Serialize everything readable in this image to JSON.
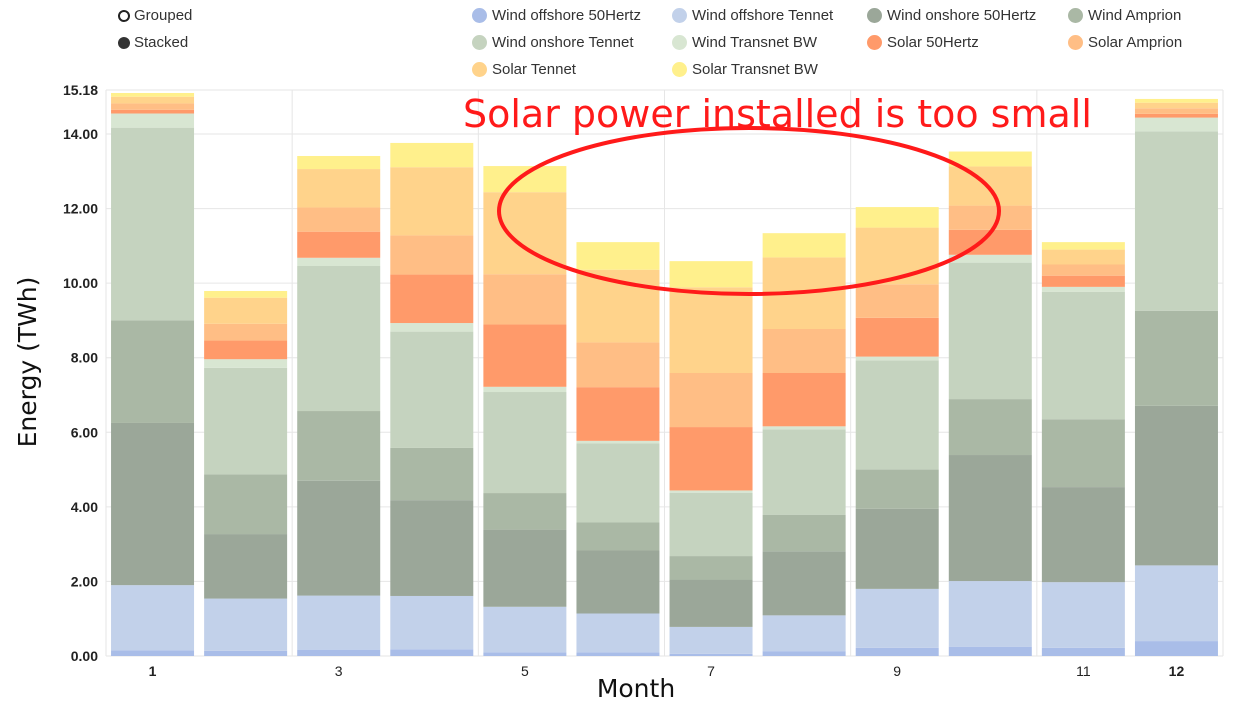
{
  "controls": {
    "grouped_label": "Grouped",
    "stacked_label": "Stacked",
    "selected": "Stacked"
  },
  "annotation": "Solar power installed is too small",
  "colors": {
    "grid": "#e6e6e6",
    "annotation": "#ff1a1a"
  },
  "chart_data": {
    "type": "bar",
    "stacked": true,
    "xlabel": "Month",
    "ylabel": "Energy (TWh)",
    "ylim": [
      0,
      15.18
    ],
    "yticks": [
      "0.00",
      "2.00",
      "4.00",
      "6.00",
      "8.00",
      "10.00",
      "12.00",
      "14.00",
      "15.18"
    ],
    "categories": [
      "1",
      "2",
      "3",
      "4",
      "5",
      "6",
      "7",
      "8",
      "9",
      "10",
      "11",
      "12"
    ],
    "xtick_labels": [
      "1",
      "",
      "3",
      "",
      "5",
      "",
      "7",
      "",
      "9",
      "",
      "11",
      "12"
    ],
    "grid": true,
    "legend_position": "top",
    "series": [
      {
        "name": "Wind offshore 50Hertz",
        "color": "#a9bde8",
        "values": [
          0.15,
          0.14,
          0.17,
          0.18,
          0.1,
          0.1,
          0.06,
          0.13,
          0.22,
          0.25,
          0.22,
          0.4
        ]
      },
      {
        "name": "Wind offshore Tennet",
        "color": "#c2d1ea",
        "values": [
          1.75,
          1.4,
          1.45,
          1.43,
          1.22,
          1.04,
          0.72,
          0.96,
          1.58,
          1.76,
          1.76,
          2.03
        ]
      },
      {
        "name": "Wind onshore 50Hertz",
        "color": "#9ba799",
        "values": [
          4.35,
          1.73,
          3.08,
          2.57,
          2.07,
          1.69,
          1.27,
          1.72,
          2.15,
          3.38,
          2.55,
          4.28
        ]
      },
      {
        "name": "Wind Amprion",
        "color": "#aab8a5",
        "values": [
          2.75,
          1.6,
          1.87,
          1.4,
          0.98,
          0.75,
          0.63,
          0.98,
          1.05,
          1.5,
          1.82,
          2.55
        ]
      },
      {
        "name": "Wind onshore Tennet",
        "color": "#c5d3bf",
        "values": [
          5.17,
          2.86,
          3.89,
          3.12,
          2.71,
          2.12,
          1.7,
          2.29,
          2.93,
          3.66,
          3.42,
          4.81
        ]
      },
      {
        "name": "Wind Transnet BW",
        "color": "#d8e6d2",
        "values": [
          0.38,
          0.23,
          0.22,
          0.23,
          0.14,
          0.07,
          0.06,
          0.08,
          0.1,
          0.21,
          0.13,
          0.37
        ]
      },
      {
        "name": "Solar 50Hertz",
        "color": "#ff9a6a",
        "values": [
          0.1,
          0.5,
          0.7,
          1.3,
          1.67,
          1.44,
          1.7,
          1.43,
          1.04,
          0.67,
          0.3,
          0.1
        ]
      },
      {
        "name": "Solar Amprion",
        "color": "#ffbe85",
        "values": [
          0.17,
          0.45,
          0.65,
          1.05,
          1.35,
          1.2,
          1.45,
          1.18,
          0.9,
          0.65,
          0.3,
          0.15
        ]
      },
      {
        "name": "Solar Tennet",
        "color": "#ffd38b",
        "values": [
          0.18,
          0.7,
          1.03,
          1.83,
          2.2,
          1.95,
          2.3,
          1.92,
          1.52,
          1.05,
          0.4,
          0.15
        ]
      },
      {
        "name": "Solar Transnet BW",
        "color": "#fff08c",
        "values": [
          0.1,
          0.18,
          0.35,
          0.65,
          0.7,
          0.74,
          0.7,
          0.65,
          0.55,
          0.4,
          0.2,
          0.1
        ]
      }
    ]
  }
}
